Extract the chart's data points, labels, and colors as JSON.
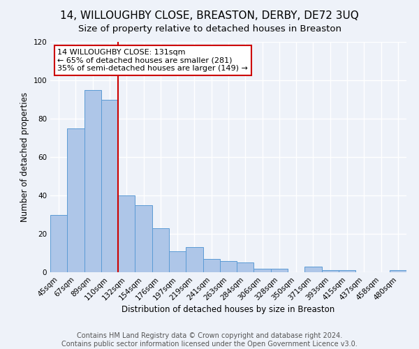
{
  "title": "14, WILLOUGHBY CLOSE, BREASTON, DERBY, DE72 3UQ",
  "subtitle": "Size of property relative to detached houses in Breaston",
  "xlabel": "Distribution of detached houses by size in Breaston",
  "ylabel": "Number of detached properties",
  "categories": [
    "45sqm",
    "67sqm",
    "89sqm",
    "110sqm",
    "132sqm",
    "154sqm",
    "176sqm",
    "197sqm",
    "219sqm",
    "241sqm",
    "263sqm",
    "284sqm",
    "306sqm",
    "328sqm",
    "350sqm",
    "371sqm",
    "393sqm",
    "415sqm",
    "437sqm",
    "458sqm",
    "480sqm"
  ],
  "values": [
    30,
    75,
    95,
    90,
    40,
    35,
    23,
    11,
    13,
    7,
    6,
    5,
    2,
    2,
    0,
    3,
    1,
    1,
    0,
    0,
    1
  ],
  "bar_color": "#aec6e8",
  "bar_edge_color": "#5b9bd5",
  "property_label": "14 WILLOUGHBY CLOSE: 131sqm",
  "annotation_line1": "← 65% of detached houses are smaller (281)",
  "annotation_line2": "35% of semi-detached houses are larger (149) →",
  "annotation_box_color": "#ffffff",
  "annotation_box_edge": "#cc0000",
  "vline_color": "#cc0000",
  "vline_x_index": 4,
  "ylim": [
    0,
    120
  ],
  "yticks": [
    0,
    20,
    40,
    60,
    80,
    100,
    120
  ],
  "footer_line1": "Contains HM Land Registry data © Crown copyright and database right 2024.",
  "footer_line2": "Contains public sector information licensed under the Open Government Licence v3.0.",
  "background_color": "#eef2f9",
  "grid_color": "#ffffff",
  "title_fontsize": 11,
  "subtitle_fontsize": 9.5,
  "axis_label_fontsize": 8.5,
  "tick_fontsize": 7.5,
  "annotation_fontsize": 8,
  "footer_fontsize": 7
}
